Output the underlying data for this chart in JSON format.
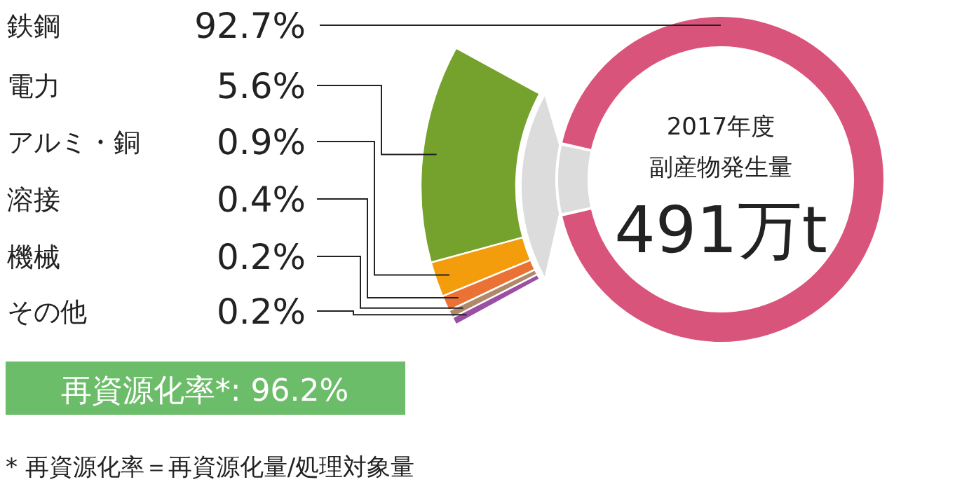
{
  "chart_data": {
    "type": "other",
    "categories": [
      "鉄鋼",
      "電力",
      "アルミ・銅",
      "溶接",
      "機械",
      "その他"
    ],
    "values": [
      92.7,
      5.6,
      0.9,
      0.4,
      0.2,
      0.2
    ],
    "colors": [
      "#d9547b",
      "#74a22c",
      "#f39c0c",
      "#ea7235",
      "#b0896a",
      "#9b4fa3"
    ],
    "value_labels": [
      "92.7%",
      "5.6%",
      "0.9%",
      "0.4%",
      "0.2%",
      "0.2%"
    ],
    "annotations": [
      "2017年度",
      "副産物発生量",
      "491万t",
      "再資源化率*: 96.2%",
      "* 再資源化率＝再資源化量/処理対象量"
    ]
  }
}
